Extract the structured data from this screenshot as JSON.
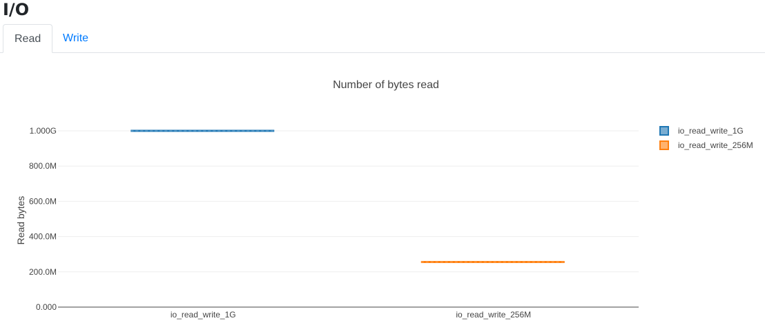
{
  "page": {
    "title": "I/O"
  },
  "tabs": [
    {
      "label": "Read",
      "active": true
    },
    {
      "label": "Write",
      "active": false
    }
  ],
  "chart_data": {
    "type": "box",
    "title": "Number of bytes read",
    "xlabel": "",
    "ylabel": "Read bytes",
    "categories": [
      "io_read_write_1G",
      "io_read_write_256M"
    ],
    "series": [
      {
        "name": "io_read_write_1G",
        "category": "io_read_write_1G",
        "value": 1000000000,
        "color": "#1f77b4"
      },
      {
        "name": "io_read_write_256M",
        "category": "io_read_write_256M",
        "value": 256000000,
        "color": "#ff7f0e"
      }
    ],
    "ylim": [
      0,
      1000000000
    ],
    "yticks": [
      {
        "v": 0,
        "label": "0.000"
      },
      {
        "v": 200000000,
        "label": "200.0M"
      },
      {
        "v": 400000000,
        "label": "400.0M"
      },
      {
        "v": 600000000,
        "label": "600.0M"
      },
      {
        "v": 800000000,
        "label": "800.0M"
      },
      {
        "v": 1000000000,
        "label": "1.000G"
      }
    ],
    "grid": true,
    "legend": "right"
  }
}
